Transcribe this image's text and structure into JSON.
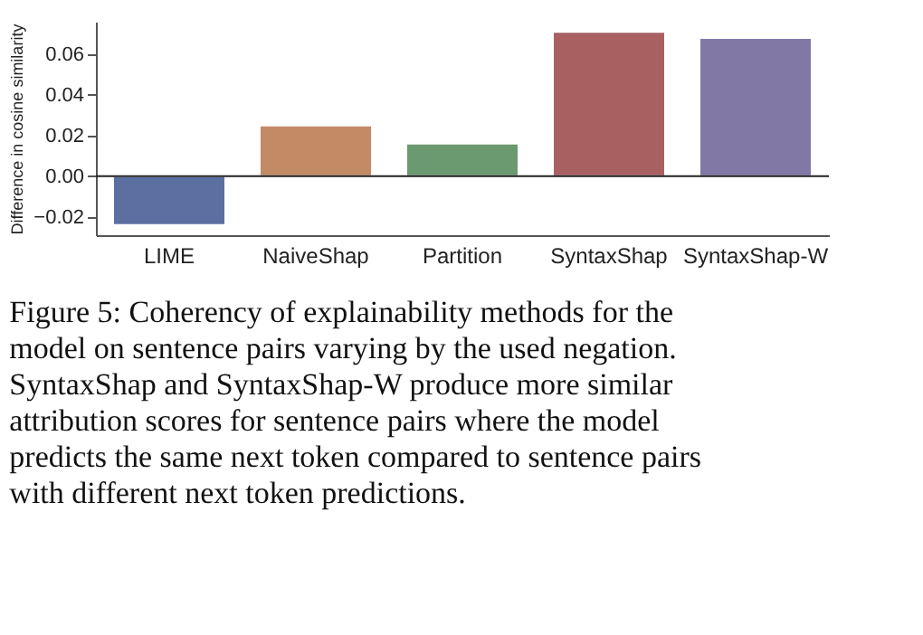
{
  "chart_data": {
    "type": "bar",
    "ylabel": "Difference in cosine similarity",
    "categories": [
      "LIME",
      "NaiveShap",
      "Partition",
      "SyntaxShap",
      "SyntaxShap-W"
    ],
    "values": [
      -0.024,
      0.025,
      0.016,
      0.071,
      0.068
    ],
    "colors": [
      "#5b70a0",
      "#c28b65",
      "#6b9a70",
      "#a86060",
      "#8278a6"
    ],
    "ylim": [
      -0.029,
      0.076
    ],
    "yticks": [
      -0.02,
      {
        "value": 0,
        "label": "0.00"
      },
      0.02,
      0.04,
      0.06
    ],
    "ref_lines": [
      {
        "axis": "y",
        "value": 0,
        "color": "#222222"
      }
    ],
    "grid": false,
    "annotations": [
      "Figure 5: Coherency of explainability methods for the model on sentence pairs varying by the used negation. SyntaxShap and SyntaxShap-W produce more similar attribution scores for sentence pairs where the model predicts the same next token compared to sentence pairs with different next token predictions."
    ]
  }
}
